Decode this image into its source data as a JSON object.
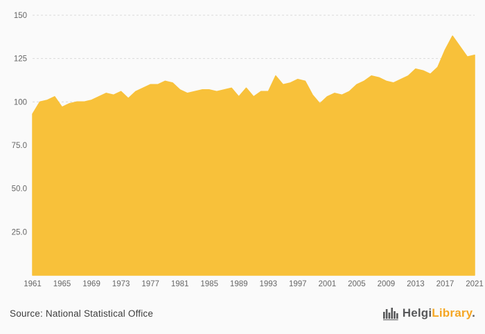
{
  "chart_data": {
    "type": "area",
    "title": "",
    "xlabel": "",
    "ylabel": "",
    "ylim": [
      0,
      150
    ],
    "grid": true,
    "legend": "none",
    "fill_color": "#f8c13a",
    "grid_color": "#d9d9d9",
    "axis_color": "#cccccc",
    "tick_color": "#666666",
    "x": [
      1961,
      1962,
      1963,
      1964,
      1965,
      1966,
      1967,
      1968,
      1969,
      1970,
      1971,
      1972,
      1973,
      1974,
      1975,
      1976,
      1977,
      1978,
      1979,
      1980,
      1981,
      1982,
      1983,
      1984,
      1985,
      1986,
      1987,
      1988,
      1989,
      1990,
      1991,
      1992,
      1993,
      1994,
      1995,
      1996,
      1997,
      1998,
      1999,
      2000,
      2001,
      2002,
      2003,
      2004,
      2005,
      2006,
      2007,
      2008,
      2009,
      2010,
      2011,
      2012,
      2013,
      2014,
      2015,
      2016,
      2017,
      2018,
      2019,
      2020,
      2021
    ],
    "values": [
      93,
      100,
      101,
      103,
      97,
      99,
      100,
      100,
      101,
      103,
      105,
      104,
      106,
      102,
      106,
      108,
      110,
      110,
      112,
      111,
      107,
      105,
      106,
      107,
      107,
      106,
      107,
      108,
      103,
      108,
      103,
      106,
      106,
      115,
      110,
      111,
      113,
      112,
      104,
      99,
      103,
      105,
      104,
      106,
      110,
      112,
      115,
      114,
      112,
      111,
      113,
      115,
      119,
      118,
      116,
      120,
      130,
      138,
      132,
      126,
      127
    ],
    "yticks": [
      {
        "label": "150",
        "value": 150
      },
      {
        "label": "125",
        "value": 125
      },
      {
        "label": "100",
        "value": 100
      },
      {
        "label": "75.0",
        "value": 75
      },
      {
        "label": "50.0",
        "value": 50
      },
      {
        "label": "25.0",
        "value": 25
      }
    ],
    "xticks": [
      1961,
      1965,
      1969,
      1973,
      1977,
      1981,
      1985,
      1989,
      1993,
      1997,
      2001,
      2005,
      2009,
      2013,
      2017,
      2021
    ]
  },
  "footer": {
    "source": "Source: National Statistical Office",
    "logo": {
      "helgi": "Helgi",
      "library": "Library",
      "dot": "."
    }
  }
}
